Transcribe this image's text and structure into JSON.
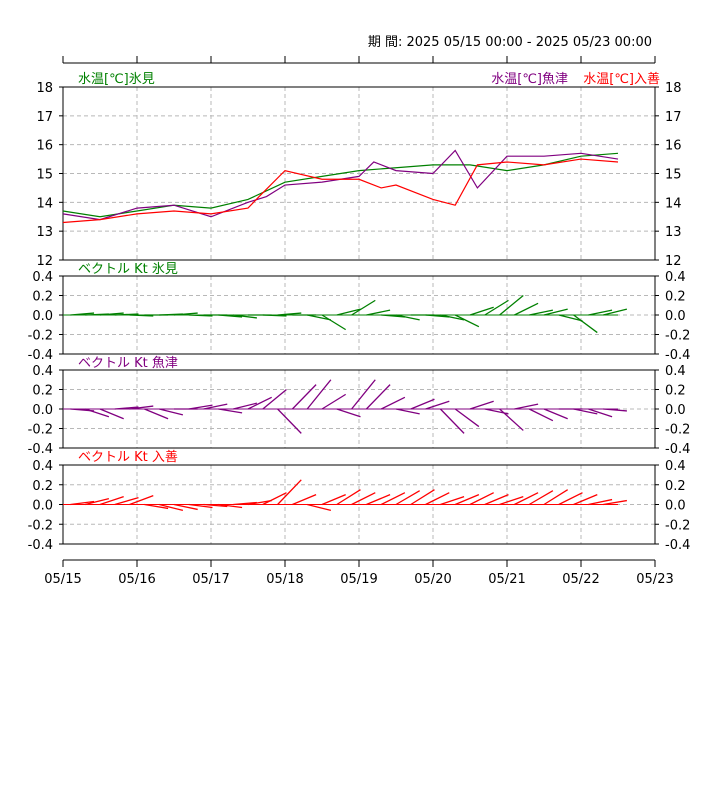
{
  "header": {
    "period_label": "期 間: 2025 05/15 00:00 - 2025 05/23 00:00"
  },
  "x_ticks": [
    "05/15",
    "05/16",
    "05/17",
    "05/18",
    "05/19",
    "05/20",
    "05/21",
    "05/22",
    "05/23"
  ],
  "colors": {
    "himi": "#008000",
    "uozu": "#800080",
    "nyuzen": "#ff0000"
  },
  "chart_data": [
    {
      "type": "line",
      "title": "",
      "legend": [
        "水温[℃]氷見",
        "水温[℃]魚津",
        "水温[℃]入善"
      ],
      "ylim": [
        12,
        18
      ],
      "y_ticks": [
        "18",
        "17",
        "16",
        "15",
        "14",
        "13",
        "12"
      ],
      "grid": true,
      "x_unit": "days since 05/15 00:00",
      "series": [
        {
          "name": "水温[℃]氷見",
          "color": "#008000",
          "x": [
            0,
            0.5,
            1,
            1.5,
            2,
            2.5,
            2.75,
            3,
            3.5,
            4,
            4.5,
            5,
            5.5,
            6,
            6.5,
            7,
            7.5
          ],
          "y": [
            13.7,
            13.5,
            13.7,
            13.9,
            13.8,
            14.1,
            14.4,
            14.7,
            14.9,
            15.1,
            15.2,
            15.3,
            15.3,
            15.1,
            15.3,
            15.6,
            15.7
          ]
        },
        {
          "name": "水温[℃]魚津",
          "color": "#800080",
          "x": [
            0,
            0.5,
            1,
            1.5,
            2,
            2.5,
            2.75,
            3,
            3.5,
            4,
            4.2,
            4.5,
            5,
            5.3,
            5.6,
            6,
            6.5,
            7,
            7.5
          ],
          "y": [
            13.6,
            13.4,
            13.8,
            13.9,
            13.5,
            14.0,
            14.2,
            14.6,
            14.7,
            14.9,
            15.4,
            15.1,
            15.0,
            15.8,
            14.5,
            15.6,
            15.6,
            15.7,
            15.5
          ]
        },
        {
          "name": "水温[℃]入善",
          "color": "#ff0000",
          "x": [
            0,
            0.5,
            1,
            1.5,
            2,
            2.5,
            2.65,
            3,
            3.5,
            4,
            4.3,
            4.5,
            5,
            5.3,
            5.6,
            6,
            6.5,
            7,
            7.5
          ],
          "y": [
            13.3,
            13.4,
            13.6,
            13.7,
            13.6,
            13.8,
            14.2,
            15.1,
            14.8,
            14.8,
            14.5,
            14.6,
            14.1,
            13.9,
            15.3,
            15.4,
            15.3,
            15.5,
            15.4
          ]
        }
      ]
    },
    {
      "type": "vector",
      "title": "ベクトル Kt 氷見",
      "color": "#008000",
      "ylim": [
        -0.4,
        0.4
      ],
      "y_ticks": [
        "0.4",
        "0.2",
        "0.0",
        "-0.2",
        "-0.4"
      ],
      "grid": true,
      "x_unit": "days since 05/15 00:00",
      "x": [
        0.1,
        0.3,
        0.5,
        0.7,
        0.9,
        1.1,
        1.3,
        1.5,
        1.7,
        1.9,
        2.1,
        2.3,
        2.5,
        2.7,
        2.9,
        3.1,
        3.3,
        3.5,
        3.7,
        3.9,
        4.1,
        4.3,
        4.5,
        4.7,
        4.9,
        5.1,
        5.3,
        5.5,
        5.7,
        5.9,
        6.1,
        6.3,
        6.5,
        6.7,
        6.9,
        7.1,
        7.3
      ],
      "values": [
        0.02,
        0.01,
        0.02,
        0.01,
        -0.01,
        0.0,
        0.01,
        0.02,
        -0.01,
        0.0,
        -0.02,
        -0.03,
        0.0,
        -0.01,
        0.02,
        0.0,
        -0.05,
        -0.15,
        0.06,
        0.15,
        0.05,
        -0.02,
        -0.05,
        0.0,
        -0.02,
        -0.05,
        -0.12,
        0.08,
        0.15,
        0.2,
        0.12,
        0.05,
        0.06,
        -0.06,
        -0.18,
        0.05,
        0.06
      ]
    },
    {
      "type": "vector",
      "title": "ベクトル Kt 魚津",
      "color": "#800080",
      "ylim": [
        -0.4,
        0.4
      ],
      "y_ticks": [
        "0.4",
        "0.2",
        "0.0",
        "-0.2",
        "-0.4"
      ],
      "grid": true,
      "x_unit": "days since 05/15 00:00",
      "x": [
        0.1,
        0.3,
        0.5,
        0.7,
        0.9,
        1.1,
        1.3,
        1.5,
        1.7,
        1.9,
        2.1,
        2.3,
        2.5,
        2.7,
        2.9,
        3.1,
        3.3,
        3.5,
        3.7,
        3.9,
        4.1,
        4.3,
        4.5,
        4.7,
        4.9,
        5.1,
        5.3,
        5.5,
        5.7,
        5.9,
        6.1,
        6.3,
        6.5,
        6.7,
        6.9,
        7.1,
        7.3
      ],
      "values": [
        -0.02,
        -0.08,
        -0.1,
        0.02,
        0.03,
        -0.1,
        -0.06,
        0.0,
        0.04,
        0.05,
        -0.04,
        0.06,
        0.12,
        0.2,
        -0.25,
        0.25,
        0.3,
        0.15,
        -0.08,
        0.3,
        0.25,
        0.12,
        -0.05,
        0.1,
        0.08,
        -0.25,
        -0.18,
        0.08,
        -0.05,
        -0.22,
        0.05,
        -0.12,
        -0.1,
        0.0,
        -0.05,
        -0.08,
        -0.02
      ]
    },
    {
      "type": "vector",
      "title": "ベクトル Kt 入善",
      "color": "#ff0000",
      "ylim": [
        -0.4,
        0.4
      ],
      "y_ticks": [
        "0.4",
        "0.2",
        "0.0",
        "-0.2",
        "-0.4"
      ],
      "grid": true,
      "x_unit": "days since 05/15 00:00",
      "x": [
        0.1,
        0.3,
        0.5,
        0.7,
        0.9,
        1.1,
        1.3,
        1.5,
        1.7,
        1.9,
        2.1,
        2.3,
        2.5,
        2.7,
        2.9,
        3.1,
        3.3,
        3.5,
        3.7,
        3.9,
        4.1,
        4.3,
        4.5,
        4.7,
        4.9,
        5.1,
        5.3,
        5.5,
        5.7,
        5.9,
        6.1,
        6.3,
        6.5,
        6.7,
        6.9,
        7.1,
        7.3
      ],
      "values": [
        0.03,
        0.06,
        0.08,
        0.07,
        0.09,
        -0.04,
        -0.06,
        -0.05,
        -0.03,
        -0.02,
        -0.03,
        0.02,
        0.04,
        0.12,
        0.25,
        0.1,
        -0.06,
        0.1,
        0.15,
        0.12,
        0.1,
        0.12,
        0.14,
        0.15,
        0.12,
        0.08,
        0.1,
        0.12,
        0.1,
        0.08,
        0.12,
        0.14,
        0.15,
        0.12,
        0.1,
        0.05,
        0.04
      ]
    }
  ]
}
